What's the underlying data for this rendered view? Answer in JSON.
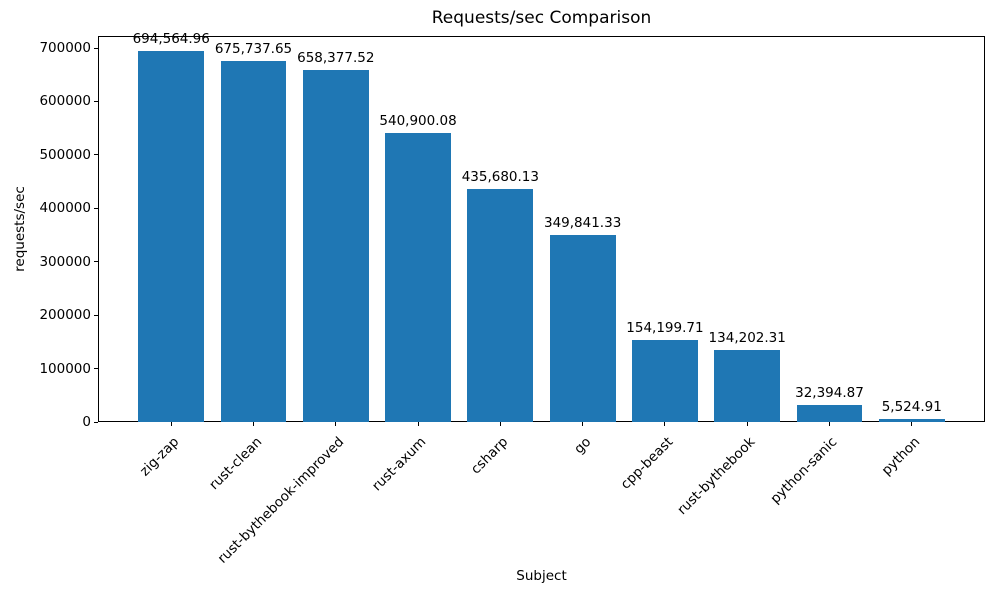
{
  "chart_data": {
    "type": "bar",
    "title": "Requests/sec Comparison",
    "xlabel": "Subject",
    "ylabel": "requests/sec",
    "categories": [
      "zig-zap",
      "rust-clean",
      "rust-bythebook-improved",
      "rust-axum",
      "csharp",
      "go",
      "cpp-beast",
      "rust-bythebook",
      "python-sanic",
      "python"
    ],
    "values": [
      694564.96,
      675737.65,
      658377.52,
      540900.08,
      435680.13,
      349841.33,
      154199.71,
      134202.31,
      32394.87,
      5524.91
    ],
    "bar_labels": [
      "694,564.96",
      "675,737.65",
      "658,377.52",
      "540,900.08",
      "435,680.13",
      "349,841.33",
      "154,199.71",
      "134,202.31",
      "32,394.87",
      "5,524.91"
    ],
    "yticks": [
      0,
      100000,
      200000,
      300000,
      400000,
      500000,
      600000,
      700000
    ],
    "ylim": [
      0,
      722460
    ],
    "xlim": [
      -0.89,
      9.89
    ],
    "bar_width": 0.8,
    "bar_color": "#1f77b4",
    "axis_color": "#000000",
    "text_color": "#000000",
    "background": "#ffffff",
    "grid": false,
    "legend": null,
    "x_tick_rotation": 45
  }
}
